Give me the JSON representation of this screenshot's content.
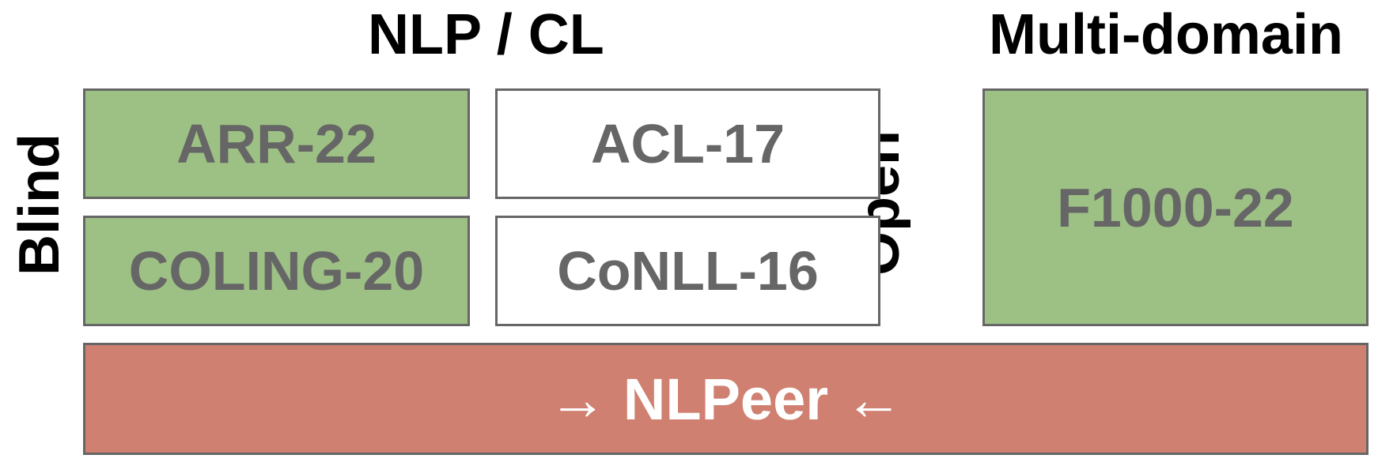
{
  "headings": {
    "nlp_cl": "NLP / CL",
    "multi_domain": "Multi-domain"
  },
  "side_labels": {
    "blind": "Blind",
    "open": "Open"
  },
  "datasets": {
    "arr": "ARR-22",
    "acl": "ACL-17",
    "coling": "COLING-20",
    "conll": "CoNLL-16",
    "f1000": "F1000-22"
  },
  "banner": "→ NLPeer ←",
  "colors": {
    "blind_fill": "#9dc084",
    "open_fill": "#9dc084",
    "plain_fill": "#ffffff",
    "banner_fill": "#d08070",
    "border": "#666666",
    "box_text": "#666666"
  }
}
